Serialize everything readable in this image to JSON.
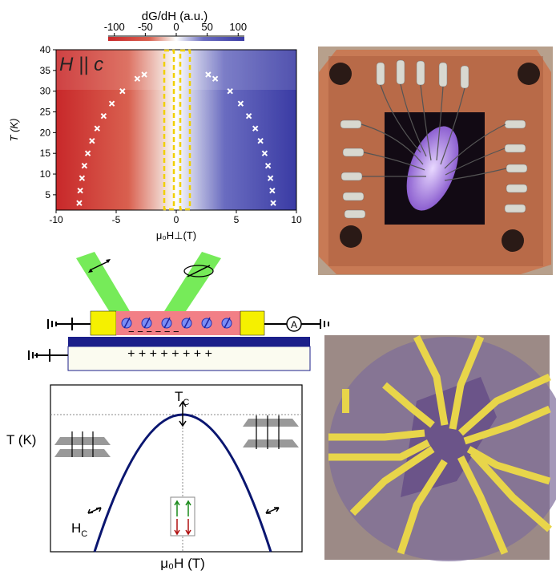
{
  "heatmap": {
    "colorbar_label": "dG/dH (a.u.)",
    "colorbar_ticks": [
      -100,
      -50,
      0,
      50,
      100
    ],
    "colorbar_lim": [
      -110,
      110
    ],
    "annotation": "H || c",
    "xlabel": "μ₀H⊥(T)",
    "ylabel": "T (K)",
    "xlim": [
      -10,
      10
    ],
    "ylim": [
      1.3,
      40
    ],
    "xticks": [
      -10,
      -5,
      0,
      5,
      10
    ],
    "yticks": [
      5,
      10,
      15,
      20,
      25,
      30,
      35,
      40
    ],
    "hc_points": {
      "x": [
        -8.07,
        -7.99,
        -7.84,
        -7.64,
        -7.36,
        -7.01,
        -6.58,
        -6.04,
        -5.36,
        -4.48,
        -3.24,
        -2.66,
        2.66,
        3.24,
        4.48,
        5.36,
        6.04,
        6.58,
        7.01,
        7.36,
        7.64,
        7.84,
        7.99,
        8.07
      ],
      "y": [
        3,
        6,
        9,
        12,
        15,
        18,
        21,
        24,
        27,
        30,
        33,
        34,
        34,
        33,
        30,
        27,
        24,
        21,
        18,
        15,
        12,
        9,
        6,
        3
      ]
    }
  },
  "device_schematic": {
    "ammeter": "A",
    "gate_charges": "+ + + + + + + +",
    "spin_charges": "−  −  −  −  −  −"
  },
  "phase_diagram": {
    "ylabel": "T (K)",
    "tc_label": "T",
    "tc_sub": "C",
    "hc_label": "H",
    "hc_sub": "C",
    "xlabel": "μ₀H (T)"
  }
}
